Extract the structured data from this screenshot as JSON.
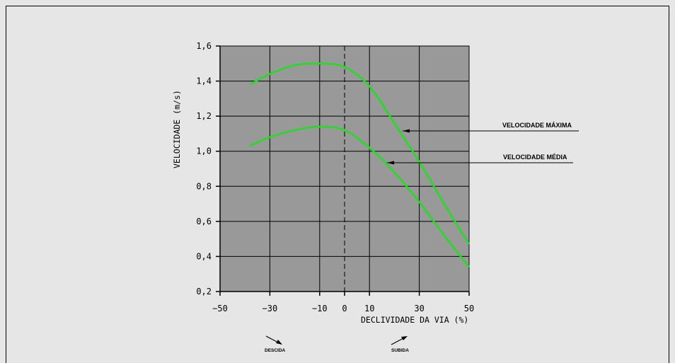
{
  "chart_data": {
    "type": "line",
    "xlabel": "DECLIVIDADE DA VIA (%)",
    "ylabel": "VELOCIDADE (m/s)",
    "xlim": [
      -50,
      50
    ],
    "ylim": [
      0.2,
      1.6
    ],
    "x_ticks": [
      -50,
      -30,
      -10,
      0,
      10,
      30,
      50
    ],
    "x_tick_labels": [
      "−50",
      "−30",
      "−10",
      "0",
      "10",
      "30",
      "50"
    ],
    "y_ticks": [
      0.2,
      0.4,
      0.6,
      0.8,
      1.0,
      1.2,
      1.4,
      1.6
    ],
    "y_tick_labels": [
      "0,2",
      "0,4",
      "0,6",
      "0,8",
      "1,0",
      "1,2",
      "1,4",
      "1,6"
    ],
    "grid": true,
    "zero_line": "dashed",
    "plot_background": "#999999",
    "line_color": "#22dd22",
    "series": [
      {
        "name": "VELOCIDADE MÁXIMA",
        "x": [
          -38,
          -30,
          -20,
          -10,
          0,
          10,
          20,
          30,
          40,
          50
        ],
        "y": [
          1.38,
          1.44,
          1.49,
          1.5,
          1.48,
          1.37,
          1.16,
          0.94,
          0.7,
          0.47
        ]
      },
      {
        "name": "VELOCIDADE MÉDIA",
        "x": [
          -38,
          -30,
          -20,
          -10,
          0,
          10,
          20,
          30,
          40,
          50
        ],
        "y": [
          1.03,
          1.08,
          1.12,
          1.14,
          1.12,
          1.02,
          0.88,
          0.71,
          0.52,
          0.34
        ]
      }
    ],
    "annotations": {
      "descida": "DESCIDA",
      "subida": "SUBIDA"
    }
  }
}
